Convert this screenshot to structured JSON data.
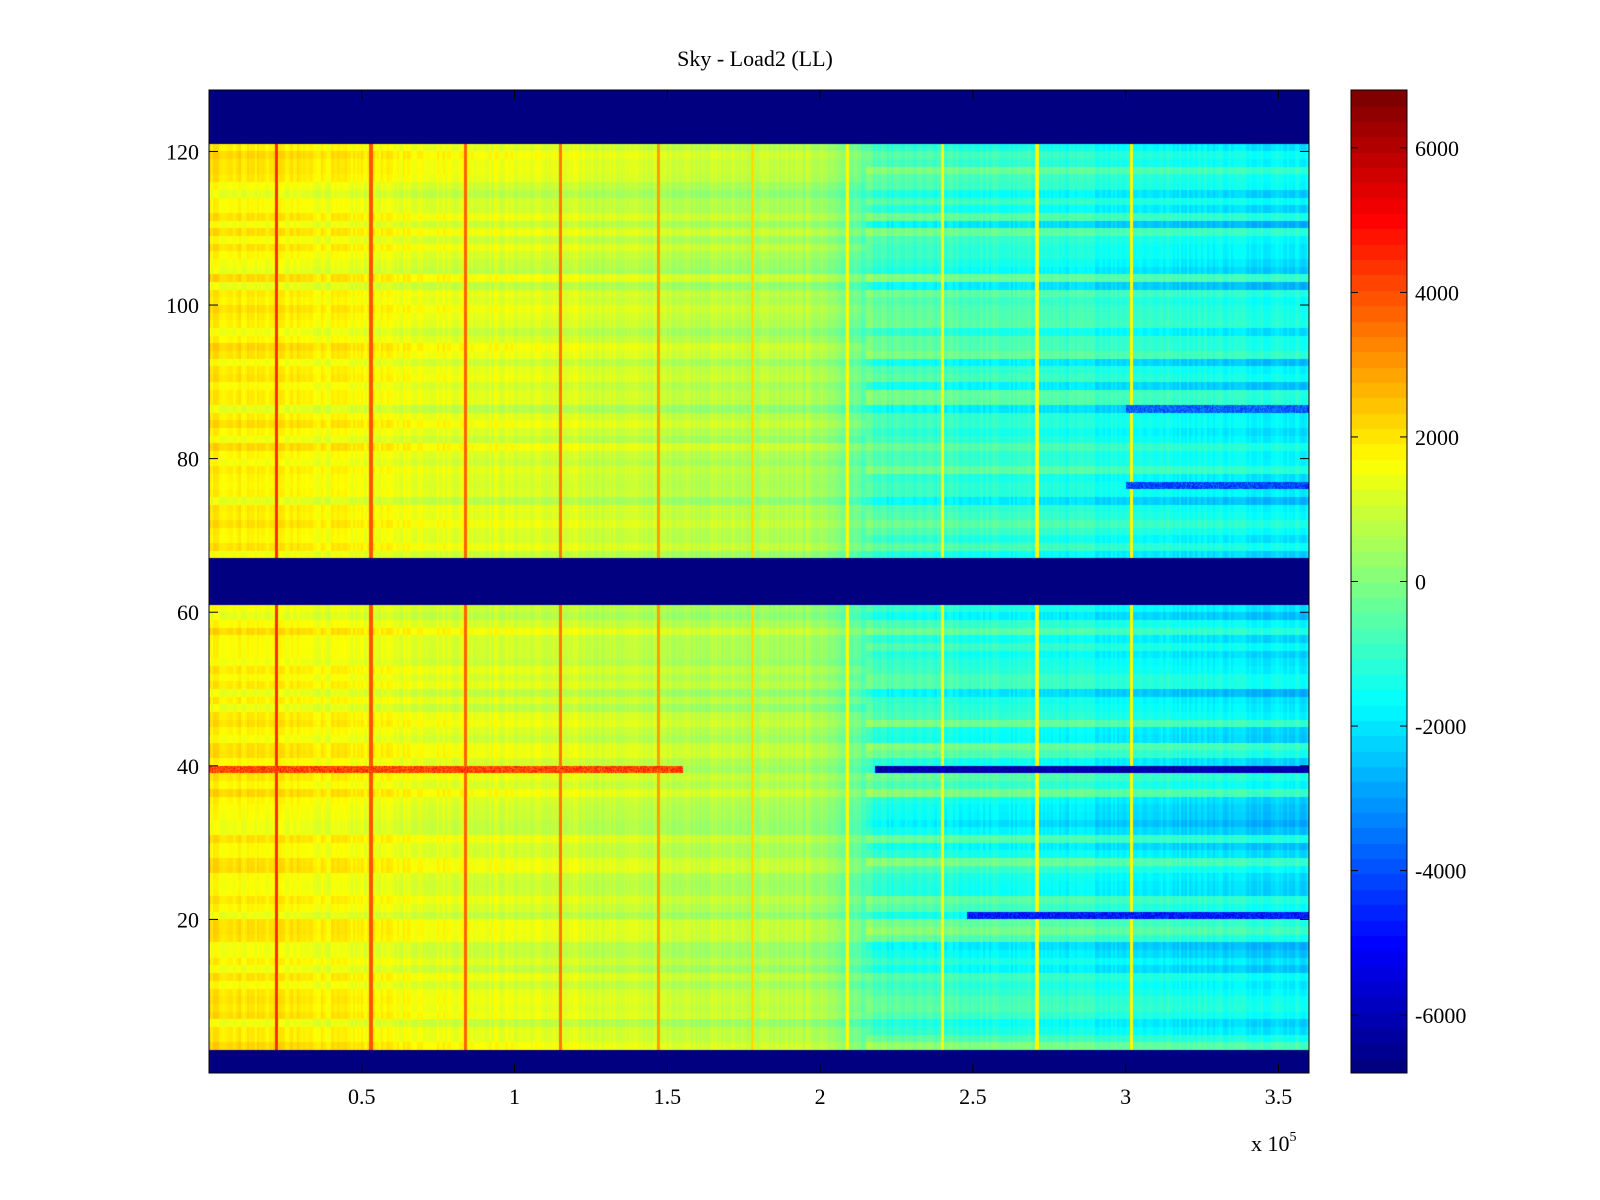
{
  "chart_data": {
    "type": "heatmap",
    "title": "Sky - Load2 (LL)",
    "xlabel": "",
    "ylabel": "",
    "x_multiplier_label": "x 10",
    "x_multiplier_exponent": "5",
    "xlim": [
      0,
      3.6
    ],
    "ylim": [
      0,
      128
    ],
    "x_ticks": [
      0.5,
      1,
      1.5,
      2,
      2.5,
      3,
      3.5
    ],
    "x_tick_labels": [
      "0.5",
      "1",
      "1.5",
      "2",
      "2.5",
      "3",
      "3.5"
    ],
    "y_ticks": [
      20,
      40,
      60,
      80,
      100,
      120
    ],
    "y_tick_labels": [
      "20",
      "40",
      "60",
      "80",
      "100",
      "120"
    ],
    "colormap": "jet",
    "clim": [
      -6800,
      6800
    ],
    "colorbar_ticks": [
      6000,
      4000,
      2000,
      0,
      -2000,
      -4000,
      -6000
    ],
    "colorbar_tick_labels": [
      "6000",
      "4000",
      "2000",
      "0",
      "-2000",
      "-4000",
      "-6000"
    ],
    "masked_rows": [
      {
        "from": 0,
        "to": 3,
        "value": -6800
      },
      {
        "from": 61,
        "to": 67,
        "value": -6800
      },
      {
        "from": 121,
        "to": 128,
        "value": -6800
      }
    ],
    "vertical_stripes": [
      {
        "x": 0.22,
        "value": 4500
      },
      {
        "x": 0.53,
        "value": 4000
      },
      {
        "x": 0.84,
        "value": 3800
      },
      {
        "x": 1.15,
        "value": 3500
      },
      {
        "x": 1.47,
        "value": 3000
      },
      {
        "x": 1.78,
        "value": 2200
      },
      {
        "x": 2.09,
        "value": 1800
      },
      {
        "x": 2.4,
        "value": 1500
      },
      {
        "x": 2.71,
        "value": 1800
      },
      {
        "x": 3.02,
        "value": 1800
      }
    ],
    "notable_rows": [
      {
        "y": 39,
        "x_from": 0,
        "x_to": 1.55,
        "value": 4200
      },
      {
        "y": 39,
        "x_from": 2.18,
        "x_to": 3.6,
        "value": -6200
      },
      {
        "y": 20,
        "x_from": 2.48,
        "x_to": 3.6,
        "value": -4800
      },
      {
        "y": 86,
        "x_from": 3.0,
        "x_to": 3.6,
        "value": -3800
      },
      {
        "y": 76,
        "x_from": 3.0,
        "x_to": 3.6,
        "value": -4200
      }
    ],
    "general_trend": {
      "x": [
        0,
        1.0,
        2.0,
        2.2,
        3.6
      ],
      "value": [
        1900,
        1200,
        500,
        -900,
        -1900
      ]
    },
    "colors": {
      "background": "#ffffff",
      "axis": "#000000",
      "masked": "#00008f"
    }
  }
}
